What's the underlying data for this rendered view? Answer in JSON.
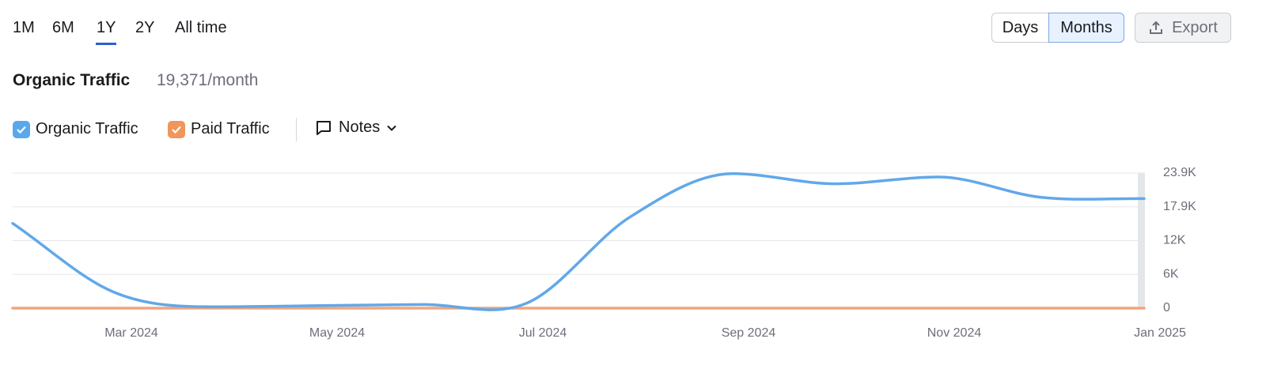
{
  "tabs": [
    "1M",
    "6M",
    "1Y",
    "2Y",
    "All time"
  ],
  "view_buttons": [
    "Days",
    "Months"
  ],
  "export": "Export",
  "notes": "Notes",
  "chart_data": {
    "type": "line",
    "title": "Organic Traffic",
    "subtitle": "19,371/month",
    "categories": [
      null,
      null,
      null,
      null,
      null,
      null,
      null,
      null,
      null,
      null,
      null,
      null
    ],
    "x_labels": [
      "Mar 2024",
      "May 2024",
      "Jul 2024",
      "Sep 2024",
      "Nov 2024",
      "Jan 2025"
    ],
    "series": [
      {
        "name": "Organic Traffic",
        "color": "#61a8ea",
        "values": [
          15000,
          2700,
          250,
          450,
          650,
          900,
          16100,
          23800,
          22000,
          23200,
          19600,
          19371
        ]
      },
      {
        "name": "Paid Traffic",
        "color": "#f3a57b",
        "values": [
          0,
          0,
          0,
          0,
          0,
          0,
          0,
          0,
          0,
          0,
          0,
          0
        ]
      }
    ],
    "ylim": [
      0,
      23900
    ],
    "yticks": [
      0,
      {
        "value": 5975,
        "label": "6K"
      },
      {
        "value": 11950,
        "label": "12K"
      },
      {
        "value": 17925,
        "label": "17.9K"
      },
      {
        "value": 23900,
        "label": "23.9K"
      }
    ],
    "grid": true
  }
}
